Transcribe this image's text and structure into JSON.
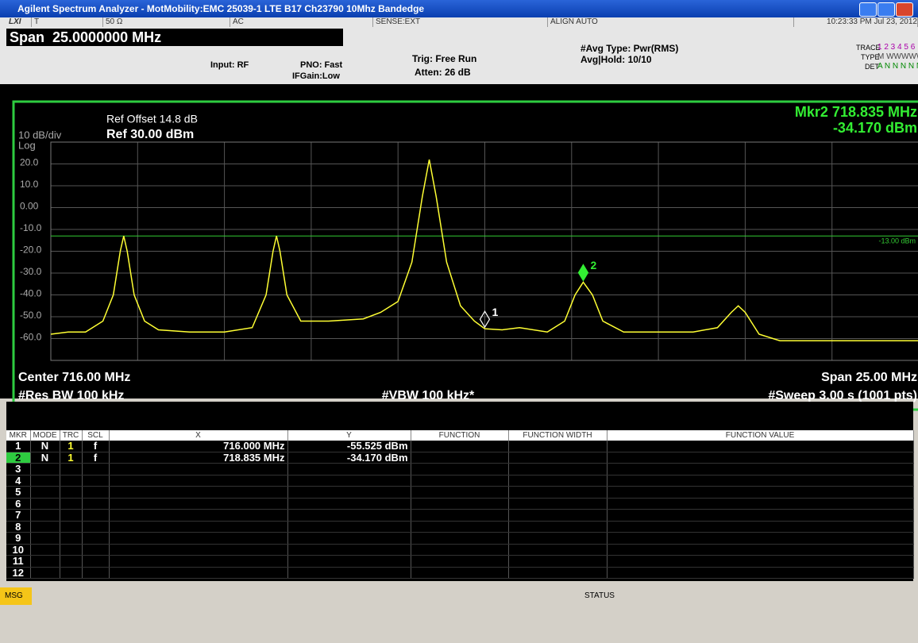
{
  "window": {
    "title": "Agilent Spectrum Analyzer - MotMobility:EMC 25039-1 LTE B17 Ch23790 10Mhz Bandedge"
  },
  "status_row": [
    "LXI",
    "T",
    "50 Ω",
    "AC",
    "SENSE:EXT",
    "ALIGN AUTO",
    "10:23:33 PM Jul 23, 2012"
  ],
  "settings": {
    "span": "Span  25.0000000 MHz",
    "input": "Input: RF",
    "pno": "PNO: Fast",
    "ifgain": "IFGain:Low",
    "trig": "Trig: Free Run",
    "atten": "Atten: 26 dB",
    "avg_type": "#Avg Type: Pwr(RMS)",
    "avg_hold": "Avg|Hold: 10/10",
    "trace_label": "TRACE",
    "trace_nums": "1 2 3 4 5 6",
    "type_label": "TYPE",
    "type_vals": "M WWWWW",
    "det_label": "DET",
    "det_vals": "A N N N N N"
  },
  "chart_data": {
    "type": "line",
    "ref_offset": "Ref Offset 14.8 dB",
    "ref_level": "Ref 30.00 dBm",
    "scale": "10 dB/div",
    "scale_type": "Log",
    "marker_readout": [
      "Mkr2 718.835 MHz",
      "-34.170 dBm"
    ],
    "bottom_labels": [
      "Center 716.00 MHz",
      "Span 25.00 MHz",
      "#Res BW 100 kHz",
      "#VBW 100 kHz*",
      "#Sweep  3.00 s (1001 pts)"
    ],
    "xlim": [
      703.5,
      728.5
    ],
    "xticks": [
      703.5,
      706,
      708.5,
      711,
      713.5,
      716,
      718.5,
      721,
      723.5,
      726,
      728.5
    ],
    "ylim": [
      -70,
      30
    ],
    "yticks": [
      30,
      {
        "value": 20,
        "label": "20.0"
      },
      {
        "value": 10,
        "label": "10.0"
      },
      {
        "value": 0,
        "label": "0.00"
      },
      {
        "value": -10,
        "label": "-10.0"
      },
      {
        "value": -20,
        "label": "-20.0"
      },
      {
        "value": -30,
        "label": "-30.0"
      },
      {
        "value": -40,
        "label": "-40.0"
      },
      {
        "value": -50,
        "label": "-50.0"
      },
      {
        "value": -60,
        "label": "-60.0"
      },
      -70
    ],
    "grid": true,
    "display_line": {
      "value": -13,
      "label": "-13.00 dBm",
      "color": "#33cc33"
    },
    "series": [
      {
        "name": "Trace 1",
        "color": "#ffff33",
        "x": [
          703.5,
          704.0,
          704.5,
          705.0,
          705.3,
          705.5,
          705.6,
          705.7,
          705.9,
          706.2,
          706.6,
          707.5,
          708.5,
          709.3,
          709.7,
          709.9,
          710.0,
          710.1,
          710.3,
          710.7,
          711.5,
          712.5,
          713.0,
          713.5,
          713.9,
          714.2,
          714.4,
          714.6,
          714.9,
          715.3,
          715.7,
          716.0,
          716.5,
          717.0,
          717.8,
          718.3,
          718.6,
          718.835,
          719.1,
          719.4,
          720.0,
          721.0,
          722.0,
          722.7,
          723.1,
          723.3,
          723.5,
          723.9,
          724.5,
          726.0,
          728.5
        ],
        "values": [
          -58,
          -57,
          -57,
          -52,
          -40,
          -20,
          -13,
          -20,
          -40,
          -52,
          -56,
          -57,
          -57,
          -55,
          -40,
          -20,
          -13,
          -20,
          -40,
          -52,
          -52,
          -51,
          -48,
          -43,
          -25,
          5,
          22,
          5,
          -25,
          -45,
          -52,
          -55.5,
          -56,
          -55,
          -57,
          -52,
          -40,
          -34.17,
          -40,
          -52,
          -57,
          -57,
          -57,
          -55,
          -48,
          -45,
          -48,
          -58,
          -61,
          -61,
          -61
        ]
      }
    ],
    "markers": [
      {
        "label": "1",
        "x": 716.0,
        "y": -55.525,
        "color": "#ffffff"
      },
      {
        "label": "2",
        "x": 718.835,
        "y": -34.17,
        "color": "#33ee33"
      }
    ]
  },
  "table": {
    "header": [
      "MKR",
      "MODE",
      "TRC",
      "SCL",
      "X",
      "Y",
      "FUNCTION",
      "FUNCTION WIDTH",
      "FUNCTION VALUE"
    ],
    "rows": [
      [
        "1",
        "N",
        "1",
        "f",
        "716.000 MHz",
        "-55.525 dBm"
      ],
      [
        "2",
        "N",
        "1",
        "f",
        "718.835 MHz",
        "-34.170 dBm"
      ],
      [
        "3"
      ],
      [
        "4"
      ],
      [
        "5"
      ],
      [
        "6"
      ],
      [
        "7"
      ],
      [
        "8"
      ],
      [
        "9"
      ],
      [
        "10"
      ],
      [
        "11"
      ],
      [
        "12"
      ]
    ]
  },
  "footer": {
    "msg": "MSG",
    "status": "STATUS"
  }
}
